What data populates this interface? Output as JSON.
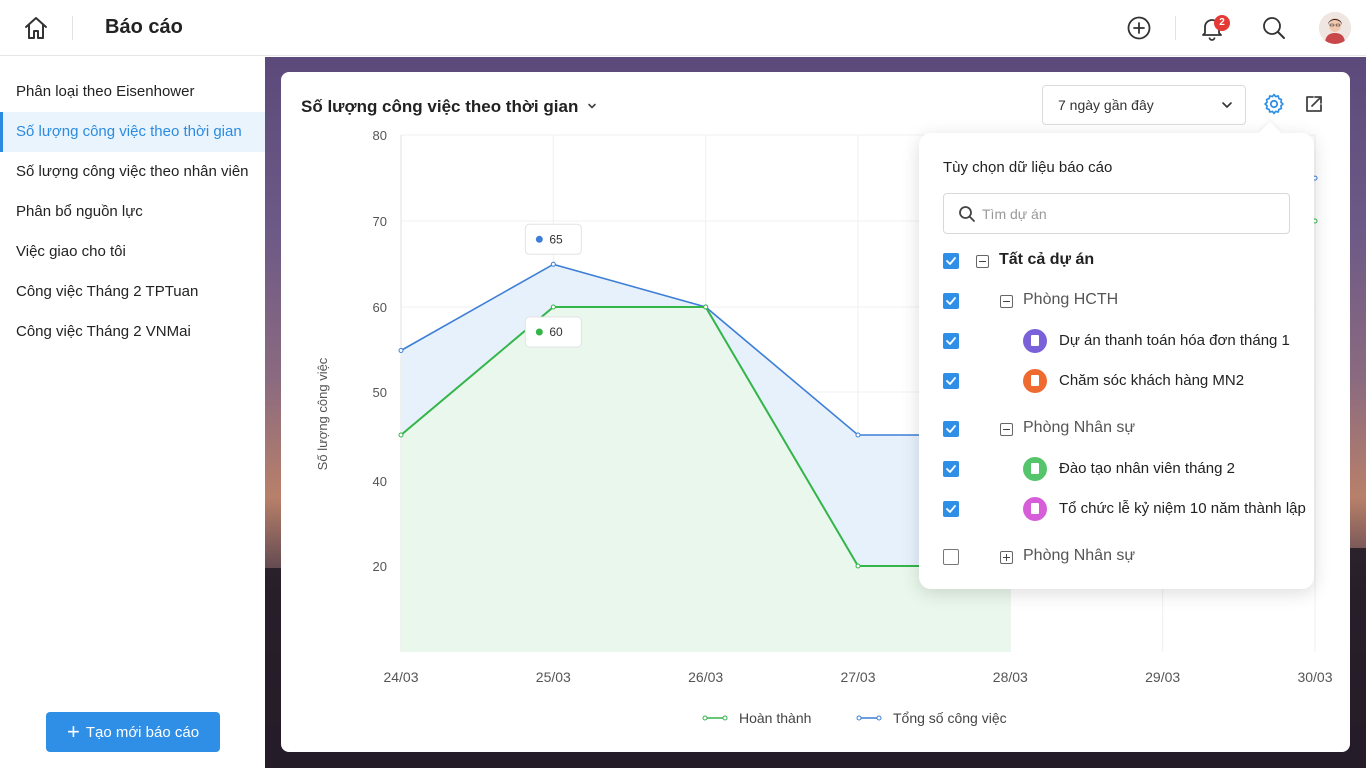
{
  "header": {
    "title": "Báo cáo",
    "notification_count": "2"
  },
  "sidebar": {
    "items": [
      {
        "label": "Phân loại theo Eisenhower"
      },
      {
        "label": "Số lượng công việc theo thời gian",
        "active": true
      },
      {
        "label": "Số lượng công việc theo nhân viên"
      },
      {
        "label": "Phân bổ nguồn lực"
      },
      {
        "label": "Việc giao cho tôi"
      },
      {
        "label": "Công việc Tháng 2 TPTuan"
      },
      {
        "label": "Công việc Tháng 2 VNMai"
      }
    ],
    "new_button_label": "Tạo mới báo cáo"
  },
  "report": {
    "title": "Số lượng công việc theo thời gian",
    "range_value": "7 ngày gần đây"
  },
  "colors": {
    "accent": "#2f8fe6",
    "completed": "#34b54a",
    "total": "#3d7fd6"
  },
  "chart_data": {
    "type": "area",
    "categories": [
      "24/03",
      "25/03",
      "26/03",
      "27/03",
      "28/03",
      "29/03",
      "30/03"
    ],
    "ylabel": "Số lượng công việc",
    "y_ticks": [
      20,
      40,
      50,
      60,
      70,
      80
    ],
    "series": [
      {
        "name": "Hoàn thành",
        "color": "#34b54a",
        "values": [
          45,
          60,
          60,
          20,
          20,
          null,
          70
        ]
      },
      {
        "name": "Tổng số công việc",
        "color": "#3d7fd6",
        "values": [
          55,
          65,
          60,
          45,
          45,
          null,
          75
        ]
      }
    ],
    "annotations": [
      {
        "series": "Tổng số công việc",
        "category": "25/03",
        "label": "65"
      },
      {
        "series": "Hoàn thành",
        "category": "25/03",
        "label": "60"
      }
    ],
    "legend": "bottom-center"
  },
  "popover": {
    "title": "Tùy chọn dữ liệu báo cáo",
    "search_placeholder": "Tìm dự án",
    "tree": [
      {
        "label": "Tất cả dự án",
        "checked": true,
        "level": 0,
        "expander": "minus"
      },
      {
        "label": "Phòng HCTH",
        "checked": true,
        "level": 1,
        "expander": "minus"
      },
      {
        "label": "Dự án thanh toán hóa đơn tháng 1",
        "checked": true,
        "level": 2,
        "icon_color": "#7b61d9"
      },
      {
        "label": "Chăm sóc khách hàng MN2",
        "checked": true,
        "level": 2,
        "icon_color": "#ef6a2f"
      },
      {
        "label": "Phòng Nhân sự",
        "checked": true,
        "level": 1,
        "expander": "minus"
      },
      {
        "label": "Đào tạo nhân viên tháng 2",
        "checked": true,
        "level": 2,
        "icon_color": "#55c46b"
      },
      {
        "label": "Tổ chức lễ kỷ niệm 10 năm thành lập",
        "checked": true,
        "level": 2,
        "icon_color": "#d65fd9"
      },
      {
        "label": "Phòng Nhân sự",
        "checked": false,
        "level": 1,
        "expander": "plus"
      }
    ]
  }
}
